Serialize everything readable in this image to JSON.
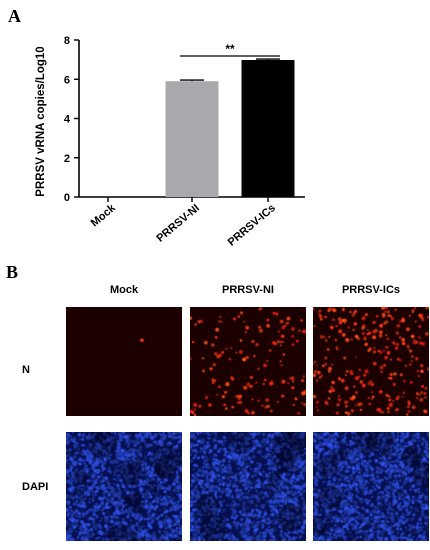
{
  "panel_a": {
    "letter": "A",
    "chart_data": {
      "type": "bar",
      "categories": [
        "Mock",
        "PRRSV-NI",
        "PRRSV-ICs"
      ],
      "values": [
        0,
        5.9,
        6.98
      ],
      "errors": [
        0,
        0.06,
        0.05
      ],
      "bar_colors": [
        "#aaaaaa",
        "#a7a9ad",
        "#000000"
      ],
      "ylabel": "PRRSV vRNA copies/Log10",
      "xlabel": "",
      "ylim": [
        0,
        8
      ],
      "yticks": [
        0,
        2,
        4,
        6,
        8
      ],
      "grid": false,
      "annotation": {
        "text": "**",
        "between": [
          "PRRSV-NI",
          "PRRSV-ICs"
        ]
      }
    }
  },
  "panel_b": {
    "letter": "B",
    "columns": [
      "Mock",
      "PRRSV-NI",
      "PRRSV-ICs"
    ],
    "rows": [
      {
        "label": "N",
        "stain_color": "#ff2a10",
        "background": "#1c0000",
        "dot_counts": [
          1,
          140,
          260
        ]
      },
      {
        "label": "DAPI",
        "stain_color": "#3a5cff",
        "background": "#061050",
        "dot_counts": [
          0,
          0,
          0
        ]
      }
    ]
  }
}
